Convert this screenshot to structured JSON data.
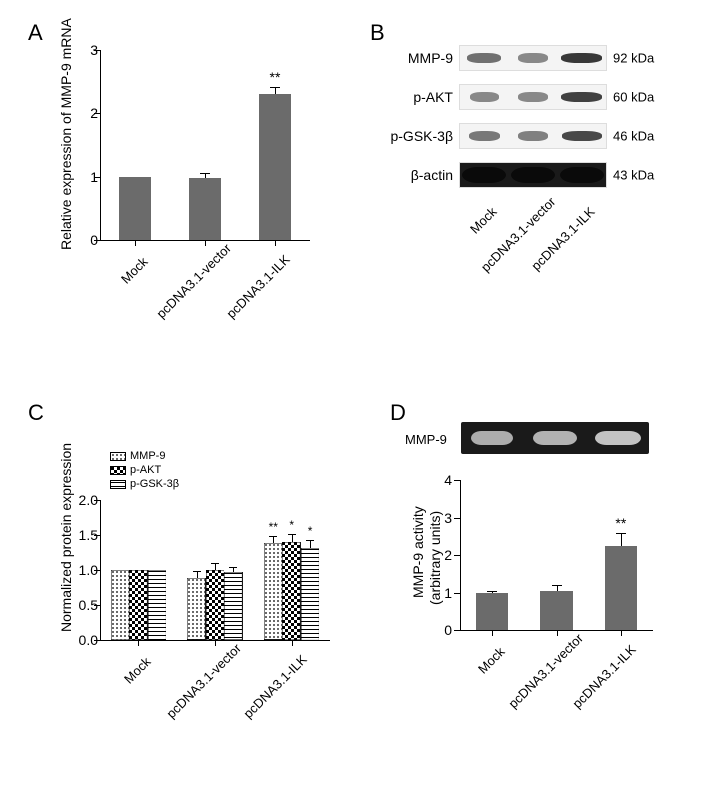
{
  "panel_labels": {
    "A": "A",
    "B": "B",
    "C": "C",
    "D": "D"
  },
  "conditions": [
    "Mock",
    "pcDNA3.1-vector",
    "pcDNA3.1-ILK"
  ],
  "panel_a": {
    "type": "bar",
    "ylabel": "Relative expression of MMP-9 mRNA",
    "ylim": [
      0,
      3
    ],
    "ytick_step": 1,
    "values": [
      1.0,
      0.98,
      2.3
    ],
    "errors": [
      0.0,
      0.08,
      0.12
    ],
    "significance": [
      "",
      "",
      "**"
    ],
    "bar_color": "#6b6b6b",
    "bar_width": 0.45
  },
  "panel_b": {
    "type": "western_blot",
    "rows": [
      {
        "name": "MMP-9",
        "size": "92 kDa",
        "intensities": [
          0.55,
          0.4,
          0.9
        ],
        "widths": [
          0.7,
          0.6,
          0.85
        ]
      },
      {
        "name": "p-AKT",
        "size": "60 kDa",
        "intensities": [
          0.4,
          0.4,
          0.85
        ],
        "widths": [
          0.6,
          0.6,
          0.85
        ]
      },
      {
        "name": "p-GSK-3β",
        "size": "46 kDa",
        "intensities": [
          0.5,
          0.45,
          0.8
        ],
        "widths": [
          0.65,
          0.6,
          0.82
        ]
      },
      {
        "name": "β-actin",
        "size": "43 kDa",
        "intensities": [
          1.0,
          1.0,
          1.0
        ],
        "widths": [
          0.9,
          0.9,
          0.9
        ],
        "style": "actin"
      }
    ]
  },
  "panel_c": {
    "type": "grouped_bar",
    "ylabel": "Normalized protein expression",
    "ylim": [
      0,
      2.0
    ],
    "yticks": [
      0,
      0.5,
      1.0,
      1.5,
      2.0
    ],
    "series": [
      "MMP-9",
      "p-AKT",
      "p-GSK-3β"
    ],
    "patterns": [
      "dots",
      "checker",
      "hlines"
    ],
    "values": [
      [
        1.0,
        1.0,
        1.0
      ],
      [
        0.88,
        1.0,
        0.97
      ],
      [
        1.38,
        1.4,
        1.32
      ]
    ],
    "errors": [
      [
        0.0,
        0.0,
        0.0
      ],
      [
        0.1,
        0.1,
        0.08
      ],
      [
        0.1,
        0.12,
        0.11
      ]
    ],
    "significance": [
      [
        "",
        "",
        ""
      ],
      [
        "",
        "",
        ""
      ],
      [
        "**",
        "*",
        "*"
      ]
    ],
    "bar_width": 0.24
  },
  "panel_d": {
    "type": "bar_with_zymogram",
    "zymogram_label": "MMP-9",
    "zymo_intensities": [
      0.7,
      0.75,
      0.95
    ],
    "ylabel_line1": "MMP-9 activity",
    "ylabel_line2": "(arbitrary units)",
    "ylim": [
      0,
      4
    ],
    "ytick_step": 1,
    "values": [
      1.0,
      1.04,
      2.25
    ],
    "errors": [
      0.04,
      0.17,
      0.35
    ],
    "significance": [
      "",
      "",
      "**"
    ],
    "bar_color": "#6b6b6b"
  },
  "colors": {
    "bar": "#6b6b6b",
    "axis": "#000000",
    "background": "#ffffff",
    "blot_dark": "#1a1a1a",
    "blot_band": "#3a3a3a"
  },
  "font_sizes": {
    "panel_label": 22,
    "axis_label": 14,
    "tick": 14,
    "legend": 11
  }
}
